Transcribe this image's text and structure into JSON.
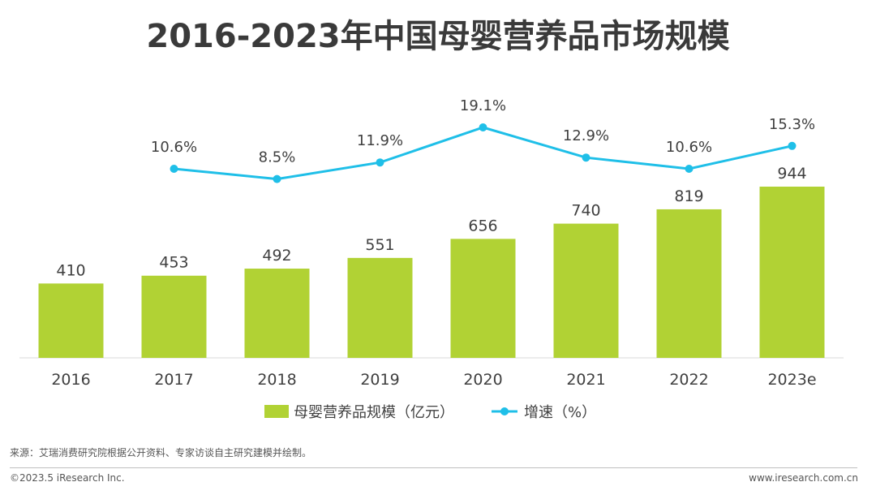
{
  "title": "2016-2023年中国母婴营养品市场规模",
  "colors": {
    "bar": "#b1d234",
    "line": "#1fbfe8",
    "axis": "#d9d9d9",
    "text": "#404040"
  },
  "chart_data": {
    "type": "bar",
    "categories": [
      "2016",
      "2017",
      "2018",
      "2019",
      "2020",
      "2021",
      "2022",
      "2023e"
    ],
    "series": [
      {
        "name": "母婴营养品规模（亿元）",
        "type": "bar",
        "values": [
          410,
          453,
          492,
          551,
          656,
          740,
          819,
          944
        ],
        "labels": [
          "410",
          "453",
          "492",
          "551",
          "656",
          "740",
          "819",
          "944"
        ]
      },
      {
        "name": "增速（%）",
        "type": "line",
        "values": [
          null,
          10.6,
          8.5,
          11.9,
          19.1,
          12.9,
          10.6,
          15.3
        ],
        "labels": [
          "",
          "10.6%",
          "8.5%",
          "11.9%",
          "19.1%",
          "12.9%",
          "10.6%",
          "15.3%"
        ]
      }
    ],
    "legend": [
      "母婴营养品规模（亿元）",
      "增速（%）"
    ],
    "legend_position": "bottom",
    "grid": false
  },
  "footer": {
    "source": "来源：艾瑞消费研究院根据公开资料、专家访谈自主研究建模并绘制。",
    "copyright": "©2023.5 iResearch Inc.",
    "site": "www.iresearch.com.cn"
  }
}
